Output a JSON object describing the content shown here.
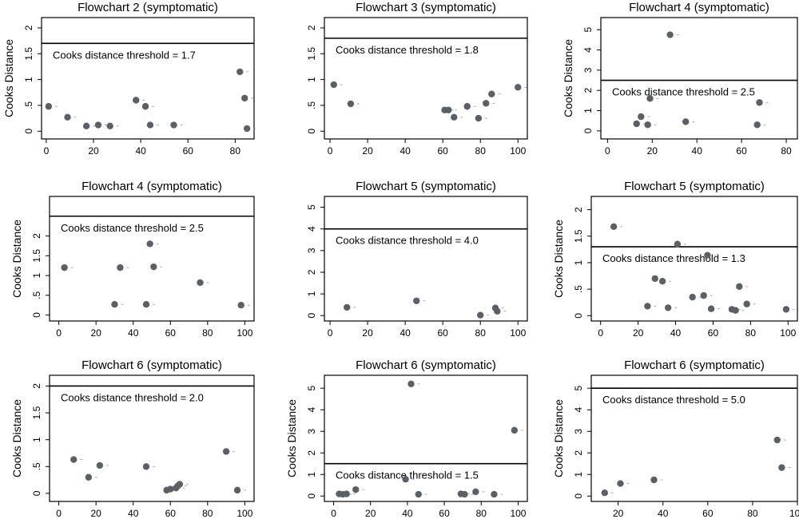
{
  "chart_data": [
    {
      "type": "scatter",
      "title": "Flowchart 2 (symptomatic)",
      "ylabel": "Cooks Distance",
      "xlabel": "",
      "xlim": [
        -2,
        88
      ],
      "ylim": [
        -0.15,
        2.2
      ],
      "xticks": [
        0,
        20,
        40,
        60,
        80
      ],
      "yticks": [
        0,
        0.5,
        1,
        1.5,
        2
      ],
      "ytick_labels": [
        "0",
        ".5",
        "1",
        "1.5",
        "2"
      ],
      "threshold": 1.7,
      "threshold_label": "Cooks distance threshold = 1.7",
      "points": [
        [
          1,
          0.48
        ],
        [
          9,
          0.27
        ],
        [
          17,
          0.1
        ],
        [
          22,
          0.12
        ],
        [
          27,
          0.1
        ],
        [
          38,
          0.6
        ],
        [
          42,
          0.48
        ],
        [
          44,
          0.12
        ],
        [
          54,
          0.12
        ],
        [
          82,
          1.15
        ],
        [
          84,
          0.64
        ],
        [
          85,
          0.05
        ]
      ]
    },
    {
      "type": "scatter",
      "title": "Flowchart 3 (symptomatic)",
      "ylabel": "",
      "xlabel": "",
      "xlim": [
        -3,
        105
      ],
      "ylim": [
        -0.15,
        2.2
      ],
      "xticks": [
        0,
        20,
        40,
        60,
        80,
        100
      ],
      "yticks": [
        0,
        0.5,
        1,
        1.5,
        2
      ],
      "ytick_labels": [
        "0",
        ".5",
        "1",
        "1.5",
        "2"
      ],
      "threshold": 1.8,
      "threshold_label": "Cooks distance threshold = 1.8",
      "points": [
        [
          2,
          0.9
        ],
        [
          11,
          0.53
        ],
        [
          61,
          0.41
        ],
        [
          63,
          0.41
        ],
        [
          66,
          0.27
        ],
        [
          73,
          0.48
        ],
        [
          79,
          0.25
        ],
        [
          83,
          0.54
        ],
        [
          86,
          0.72
        ],
        [
          100,
          0.85
        ]
      ]
    },
    {
      "type": "scatter",
      "title": "Flowchart 4 (symptomatic)",
      "ylabel": "Cooks Distance",
      "xlabel": "",
      "xlim": [
        -3,
        85
      ],
      "ylim": [
        -0.4,
        5.6
      ],
      "xticks": [
        0,
        20,
        40,
        60,
        80
      ],
      "yticks": [
        0,
        1,
        2,
        3,
        4,
        5
      ],
      "ytick_labels": [
        "0",
        "1",
        "2",
        "3",
        "4",
        "5"
      ],
      "threshold": 2.5,
      "threshold_label": "Cooks distance threshold = 2.5",
      "points": [
        [
          13,
          0.35
        ],
        [
          15,
          0.7
        ],
        [
          18,
          0.3
        ],
        [
          19,
          1.6
        ],
        [
          28,
          4.75
        ],
        [
          35,
          0.45
        ],
        [
          67,
          0.3
        ],
        [
          68,
          1.4
        ]
      ]
    },
    {
      "type": "scatter",
      "title": "Flowchart 4 (symptomatic)",
      "ylabel": "Cooks Distance",
      "xlabel": "",
      "xlim": [
        -5,
        105
      ],
      "ylim": [
        -0.15,
        3.0
      ],
      "xticks": [
        0,
        20,
        40,
        60,
        80,
        100
      ],
      "yticks": [
        0,
        0.5,
        1,
        1.5,
        2
      ],
      "ytick_labels": [
        "0",
        ".5",
        "1",
        "1.5",
        "2"
      ],
      "threshold": 2.5,
      "threshold_label": "Cooks distance threshold = 2.5",
      "points": [
        [
          3,
          1.2
        ],
        [
          30,
          0.27
        ],
        [
          33,
          1.2
        ],
        [
          47,
          0.27
        ],
        [
          49,
          1.8
        ],
        [
          51,
          1.22
        ],
        [
          76,
          0.82
        ],
        [
          98,
          0.25
        ]
      ]
    },
    {
      "type": "scatter",
      "title": "Flowchart 5 (symptomatic)",
      "ylabel": "",
      "xlabel": "",
      "xlim": [
        -3,
        105
      ],
      "ylim": [
        -0.25,
        5.5
      ],
      "xticks": [
        0,
        20,
        40,
        60,
        80,
        100
      ],
      "yticks": [
        0,
        1,
        2,
        3,
        4,
        5
      ],
      "ytick_labels": [
        "0",
        "1",
        "2",
        "3",
        "4",
        "5"
      ],
      "threshold": 4.0,
      "threshold_label": "Cooks distance threshold = 4.0",
      "points": [
        [
          9,
          0.38
        ],
        [
          46,
          0.68
        ],
        [
          80,
          0.02
        ],
        [
          88,
          0.35
        ],
        [
          89,
          0.2
        ]
      ]
    },
    {
      "type": "scatter",
      "title": "Flowchart 5 (symptomatic)",
      "ylabel": "Cooks Distance",
      "xlabel": "",
      "xlim": [
        -5,
        105
      ],
      "ylim": [
        -0.1,
        2.25
      ],
      "xticks": [
        0,
        20,
        40,
        60,
        80,
        100
      ],
      "yticks": [
        0,
        0.5,
        1,
        1.5,
        2
      ],
      "ytick_labels": [
        "0",
        ".5",
        "1",
        "1.5",
        "2"
      ],
      "threshold": 1.3,
      "threshold_label": "Cooks distance threshold = 1.3",
      "points": [
        [
          7,
          1.68
        ],
        [
          25,
          0.18
        ],
        [
          29,
          0.7
        ],
        [
          33,
          0.65
        ],
        [
          36,
          0.15
        ],
        [
          41,
          1.35
        ],
        [
          49,
          0.35
        ],
        [
          55,
          0.38
        ],
        [
          57,
          1.14
        ],
        [
          59,
          0.13
        ],
        [
          70,
          0.12
        ],
        [
          72,
          0.1
        ],
        [
          74,
          0.55
        ],
        [
          78,
          0.22
        ],
        [
          99,
          0.12
        ]
      ]
    },
    {
      "type": "scatter",
      "title": "Flowchart 6 (symptomatic)",
      "ylabel": "Cooks Distance",
      "xlabel": "",
      "xlim": [
        -5,
        105
      ],
      "ylim": [
        -0.15,
        2.2
      ],
      "xticks": [
        0,
        20,
        40,
        60,
        80,
        100
      ],
      "yticks": [
        0,
        0.5,
        1,
        1.5,
        2
      ],
      "ytick_labels": [
        "0",
        ".5",
        "1",
        "1.5",
        "2"
      ],
      "threshold": 2.0,
      "threshold_label": "Cooks distance threshold = 2.0",
      "points": [
        [
          8,
          0.63
        ],
        [
          16,
          0.3
        ],
        [
          22,
          0.52
        ],
        [
          47,
          0.5
        ],
        [
          58,
          0.06
        ],
        [
          60,
          0.08
        ],
        [
          63,
          0.1
        ],
        [
          64,
          0.14
        ],
        [
          65,
          0.17
        ],
        [
          90,
          0.78
        ],
        [
          96,
          0.06
        ]
      ]
    },
    {
      "type": "scatter",
      "title": "Flowchart 6 (symptomatic)",
      "ylabel": "Cooks Distance",
      "xlabel": "",
      "xlim": [
        -5,
        105
      ],
      "ylim": [
        -0.25,
        5.6
      ],
      "xticks": [
        0,
        20,
        40,
        60,
        80,
        100
      ],
      "yticks": [
        0,
        1,
        2,
        3,
        4,
        5
      ],
      "ytick_labels": [
        "0",
        "1",
        "2",
        "3",
        "4",
        "5"
      ],
      "threshold": 1.5,
      "threshold_label": "Cooks distance threshold = 1.5",
      "points": [
        [
          3,
          0.1
        ],
        [
          5,
          0.08
        ],
        [
          7,
          0.1
        ],
        [
          12,
          0.3
        ],
        [
          39,
          0.78
        ],
        [
          42,
          5.2
        ],
        [
          46,
          0.08
        ],
        [
          69,
          0.1
        ],
        [
          71,
          0.08
        ],
        [
          77,
          0.2
        ],
        [
          87,
          0.08
        ],
        [
          98,
          3.05
        ]
      ]
    },
    {
      "type": "scatter",
      "title": "Flowchart 6 (symptomatic)",
      "ylabel": "Cooks Distance",
      "xlabel": "",
      "xlim": [
        8,
        100
      ],
      "ylim": [
        -0.25,
        5.6
      ],
      "xticks": [
        20,
        40,
        60,
        80,
        100
      ],
      "yticks": [
        0,
        1,
        2,
        3,
        4,
        5
      ],
      "ytick_labels": [
        "0",
        "1",
        "2",
        "3",
        "4",
        "5"
      ],
      "threshold": 5.0,
      "threshold_label": "Cooks distance threshold = 5.0",
      "points": [
        [
          14,
          0.15
        ],
        [
          21,
          0.58
        ],
        [
          36,
          0.75
        ],
        [
          91,
          2.6
        ],
        [
          93,
          1.32
        ]
      ]
    }
  ]
}
